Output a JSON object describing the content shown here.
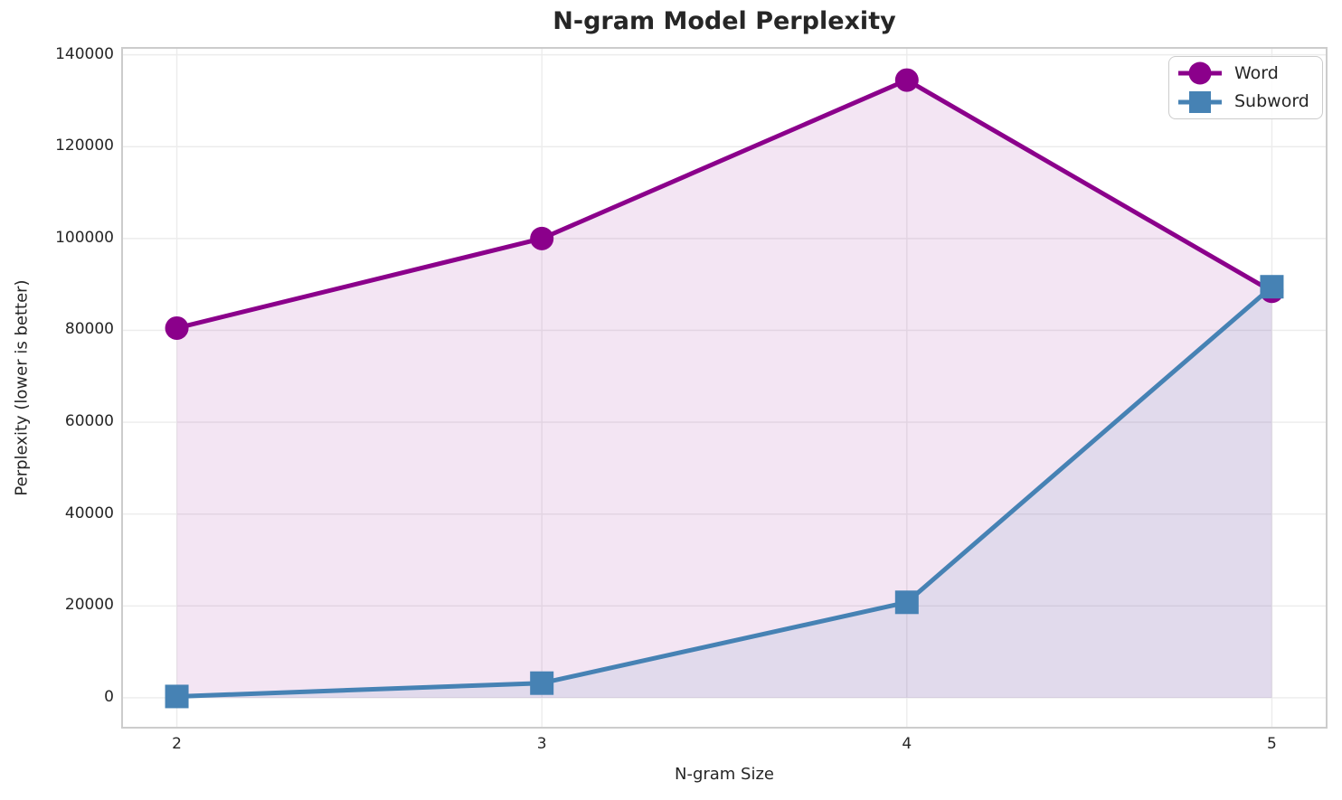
{
  "figure": {
    "background": "#ffffff"
  },
  "colors": {
    "grid": "#ececec",
    "spine": "#cccccc",
    "text": "#262626",
    "word_series": "#8B008B",
    "subword_series": "#4682B4"
  },
  "legend": {
    "items": [
      "Word",
      "Subword"
    ]
  },
  "chart_data": {
    "type": "line",
    "title": "N-gram Model Perplexity",
    "xlabel": "N-gram Size",
    "ylabel": "Perplexity (lower is better)",
    "x": [
      2,
      3,
      4,
      5
    ],
    "xticks": [
      2,
      3,
      4,
      5
    ],
    "yticks": [
      0,
      20000,
      40000,
      60000,
      80000,
      100000,
      120000,
      140000
    ],
    "xlim": [
      1.85,
      5.15
    ],
    "ylim": [
      -6500,
      141500
    ],
    "grid": true,
    "area_fill_to_zero": true,
    "fill_alpha": 0.1,
    "legend_position": "upper right",
    "series": [
      {
        "name": "Word",
        "marker": "circle",
        "color": "#8B008B",
        "values": [
          80500,
          100000,
          134500,
          88500
        ]
      },
      {
        "name": "Subword",
        "marker": "square",
        "color": "#4682B4",
        "values": [
          300,
          3200,
          20800,
          89500
        ]
      }
    ]
  }
}
